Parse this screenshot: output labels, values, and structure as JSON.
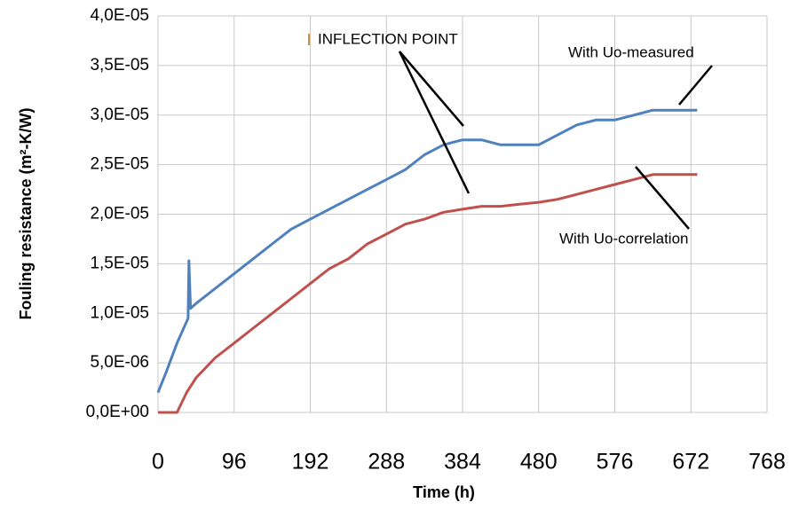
{
  "chart_data": {
    "type": "line",
    "xlabel": "Time (h)",
    "ylabel": "Fouling resistance (m²-K/W)",
    "xlim": [
      0,
      768
    ],
    "xticks": [
      0,
      96,
      192,
      288,
      384,
      480,
      576,
      672,
      768
    ],
    "ylim": [
      0,
      4e-05
    ],
    "yticks": [
      {
        "value": 0,
        "label": "0,0E+00"
      },
      {
        "value": 5e-06,
        "label": "5,0E-06"
      },
      {
        "value": 1e-05,
        "label": "1,0E-05"
      },
      {
        "value": 1.5e-05,
        "label": "1,5E-05"
      },
      {
        "value": 2e-05,
        "label": "2,0E-05"
      },
      {
        "value": 2.5e-05,
        "label": "2,5E-05"
      },
      {
        "value": 3e-05,
        "label": "3,0E-05"
      },
      {
        "value": 3.5e-05,
        "label": "3,5E-05"
      },
      {
        "value": 4e-05,
        "label": "4,0E-05"
      }
    ],
    "grid": true,
    "series": [
      {
        "name": "With Uo-measured",
        "color": "#4f81bd",
        "x": [
          0,
          10,
          24,
          38,
          39,
          41,
          48,
          72,
          96,
          120,
          144,
          168,
          192,
          216,
          240,
          264,
          288,
          312,
          336,
          360,
          384,
          408,
          432,
          456,
          480,
          504,
          528,
          552,
          576,
          600,
          624,
          648,
          672,
          680
        ],
        "values": [
          2e-06,
          4e-06,
          7e-06,
          9.5e-06,
          1.53e-05,
          1.05e-05,
          1.1e-05,
          1.25e-05,
          1.4e-05,
          1.55e-05,
          1.7e-05,
          1.85e-05,
          1.95e-05,
          2.05e-05,
          2.15e-05,
          2.25e-05,
          2.35e-05,
          2.45e-05,
          2.6e-05,
          2.7e-05,
          2.75e-05,
          2.75e-05,
          2.7e-05,
          2.7e-05,
          2.7e-05,
          2.8e-05,
          2.9e-05,
          2.95e-05,
          2.95e-05,
          3e-05,
          3.05e-05,
          3.05e-05,
          3.05e-05,
          3.05e-05
        ]
      },
      {
        "name": "With Uo-correlation",
        "color": "#c0504d",
        "x": [
          0,
          24,
          36,
          48,
          72,
          96,
          120,
          144,
          168,
          192,
          216,
          240,
          264,
          288,
          312,
          336,
          360,
          384,
          408,
          432,
          456,
          480,
          504,
          528,
          552,
          576,
          600,
          624,
          648,
          672,
          680
        ],
        "values": [
          0,
          0,
          2e-06,
          3.5e-06,
          5.5e-06,
          7e-06,
          8.5e-06,
          1e-05,
          1.15e-05,
          1.3e-05,
          1.45e-05,
          1.55e-05,
          1.7e-05,
          1.8e-05,
          1.9e-05,
          1.95e-05,
          2.02e-05,
          2.05e-05,
          2.08e-05,
          2.08e-05,
          2.1e-05,
          2.12e-05,
          2.15e-05,
          2.2e-05,
          2.25e-05,
          2.3e-05,
          2.35e-05,
          2.4e-05,
          2.4e-05,
          2.4e-05,
          2.4e-05
        ]
      }
    ],
    "annotations": [
      {
        "text": "INFLECTION POINT",
        "color": "#000000"
      },
      {
        "text": "With Uo-measured",
        "color": "#4f81bd"
      },
      {
        "text": "With Uo-correlation",
        "color": "#9b2d3a"
      }
    ]
  }
}
